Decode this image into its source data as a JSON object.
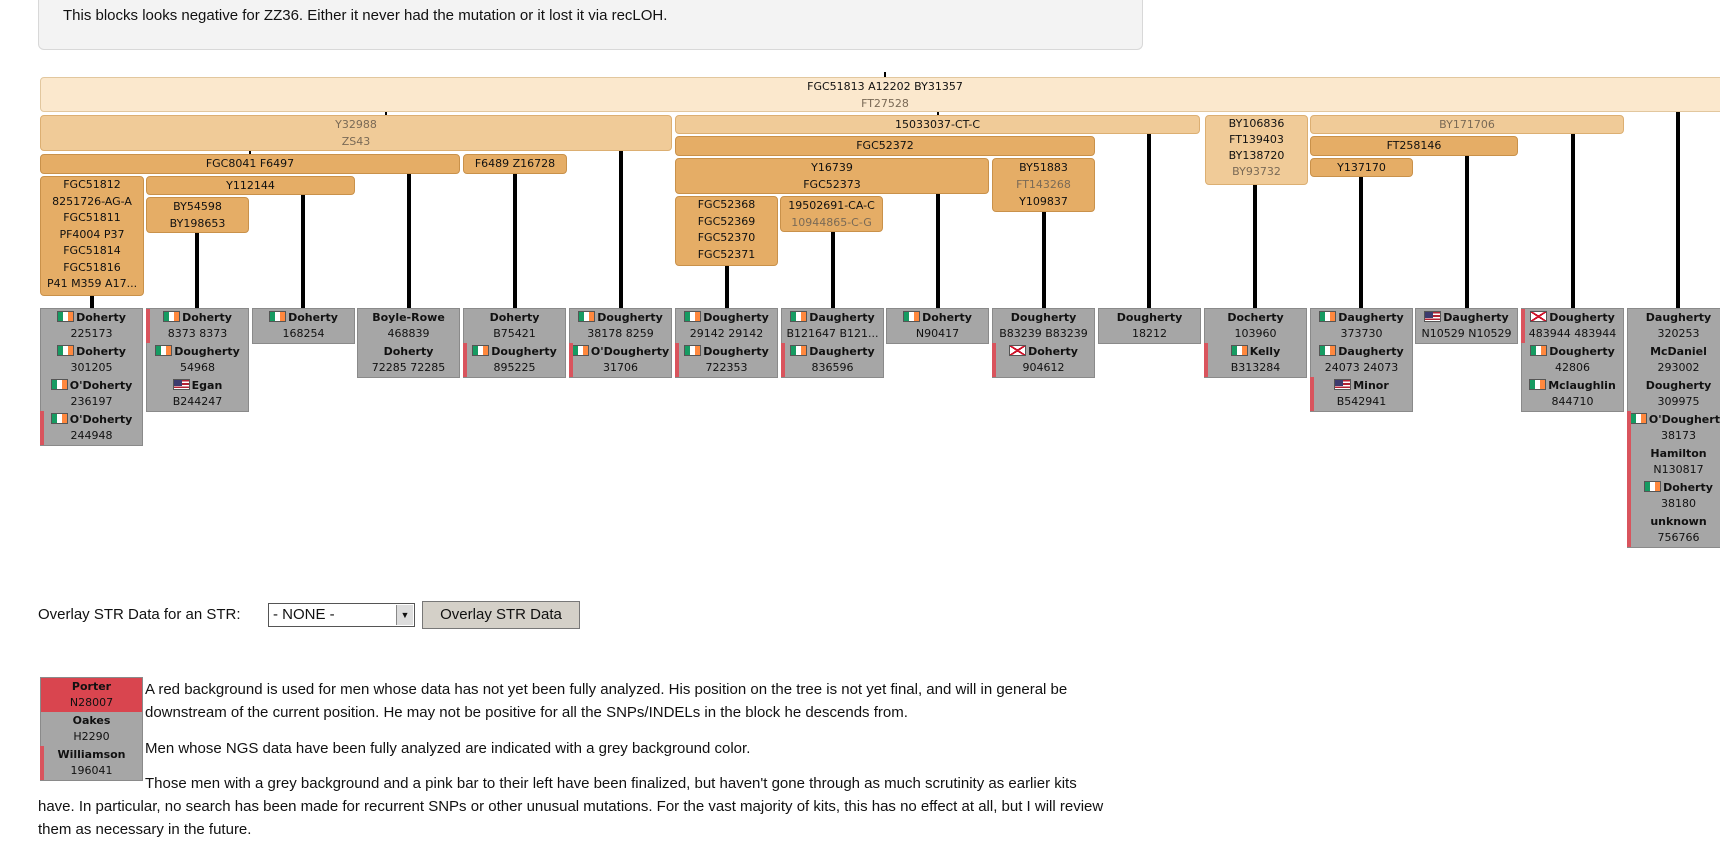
{
  "notice": "This blocks looks negative for ZZ36. Either it never had the mutation or it lost it via recLOH.",
  "blocks": {
    "root_line1": "FGC51813 A12202 BY31357",
    "root_line2": "FT27528",
    "y32988": "Y32988",
    "zs43": "ZS43",
    "ct15033037": "15033037-CT-C",
    "by106836": "BY106836",
    "ft139403": "FT139403",
    "by138720": "BY138720",
    "by93732": "BY93732",
    "by171706": "BY171706",
    "fgc8041": "FGC8041 F6497",
    "f6489": "F6489 Z16728",
    "fgc52372": "FGC52372",
    "ft258146": "FT258146",
    "fgc51812": [
      "FGC51812",
      "8251726-AG-A",
      "FGC51811",
      "PF4004 P37",
      "FGC51814",
      "FGC51816",
      "P41 M359 A17..."
    ],
    "y112144": "Y112144",
    "by54598": [
      "BY54598",
      "BY198653"
    ],
    "y16739": [
      "Y16739",
      "FGC52373"
    ],
    "by51883": "BY51883",
    "ft143268": "FT143268",
    "y109837": "Y109837",
    "y137170": "Y137170",
    "fgc52368": [
      "FGC52368",
      "FGC52369",
      "FGC52370",
      "FGC52371"
    ],
    "ca19502691": "19502691-CA-C",
    "cg10944865": "10944865-C-G"
  },
  "kits": [
    [
      {
        "flag": "ie",
        "name": "Doherty",
        "id": "225173",
        "mark": ""
      },
      {
        "flag": "ie",
        "name": "Doherty",
        "id": "301205",
        "mark": ""
      },
      {
        "flag": "ie",
        "name": "O'Doherty",
        "id": "236197",
        "mark": ""
      },
      {
        "flag": "ie",
        "name": "O'Doherty",
        "id": "244948",
        "mark": "pink"
      }
    ],
    [
      {
        "flag": "ie",
        "name": "Doherty",
        "id": "8373 8373",
        "mark": "pink"
      },
      {
        "flag": "ie",
        "name": "Dougherty",
        "id": "54968",
        "mark": ""
      },
      {
        "flag": "us",
        "name": "Egan",
        "id": "B244247",
        "mark": ""
      }
    ],
    [
      {
        "flag": "ie",
        "name": "Doherty",
        "id": "168254",
        "mark": ""
      }
    ],
    [
      {
        "flag": "",
        "name": "Boyle-Rowe",
        "id": "468839",
        "mark": ""
      },
      {
        "flag": "",
        "name": "Doherty",
        "id": "72285 72285",
        "mark": ""
      }
    ],
    [
      {
        "flag": "",
        "name": "Doherty",
        "id": "B75421",
        "mark": ""
      },
      {
        "flag": "ie",
        "name": "Dougherty",
        "id": "895225",
        "mark": "pink"
      }
    ],
    [
      {
        "flag": "ie",
        "name": "Dougherty",
        "id": "38178 8259",
        "mark": ""
      },
      {
        "flag": "ie",
        "name": "O'Dougherty",
        "id": "31706",
        "mark": "pink"
      }
    ],
    [
      {
        "flag": "ie",
        "name": "Dougherty",
        "id": "29142 29142",
        "mark": ""
      },
      {
        "flag": "ie",
        "name": "Dougherty",
        "id": "722353",
        "mark": "pink"
      }
    ],
    [
      {
        "flag": "ie",
        "name": "Daugherty",
        "id": "B121647 B121...",
        "mark": ""
      },
      {
        "flag": "ie",
        "name": "Daugherty",
        "id": "836596",
        "mark": "pink"
      }
    ],
    [
      {
        "flag": "ie",
        "name": "Doherty",
        "id": "N90417",
        "mark": ""
      }
    ],
    [
      {
        "flag": "",
        "name": "Dougherty",
        "id": "B83239 B83239",
        "mark": ""
      },
      {
        "flag": "ni",
        "name": "Doherty",
        "id": "904612",
        "mark": "pink"
      }
    ],
    [
      {
        "flag": "",
        "name": "Dougherty",
        "id": "18212",
        "mark": ""
      }
    ],
    [
      {
        "flag": "",
        "name": "Docherty",
        "id": "103960",
        "mark": ""
      },
      {
        "flag": "ie",
        "name": "Kelly",
        "id": "B313284",
        "mark": "pink"
      }
    ],
    [
      {
        "flag": "ie",
        "name": "Daugherty",
        "id": "373730",
        "mark": ""
      },
      {
        "flag": "ie",
        "name": "Daugherty",
        "id": "24073 24073",
        "mark": ""
      },
      {
        "flag": "us",
        "name": "Minor",
        "id": "B542941",
        "mark": "pink"
      }
    ],
    [
      {
        "flag": "us",
        "name": "Daugherty",
        "id": "N10529 N10529",
        "mark": ""
      }
    ],
    [
      {
        "flag": "ni",
        "name": "Dougherty",
        "id": "483944 483944",
        "mark": "pink"
      },
      {
        "flag": "ie",
        "name": "Dougherty",
        "id": "42806",
        "mark": ""
      },
      {
        "flag": "ie",
        "name": "Mclaughlin",
        "id": "844710",
        "mark": ""
      }
    ],
    [
      {
        "flag": "",
        "name": "Daugherty",
        "id": "320253",
        "mark": ""
      },
      {
        "flag": "",
        "name": "McDaniel",
        "id": "293002",
        "mark": ""
      },
      {
        "flag": "",
        "name": "Dougherty",
        "id": "309975",
        "mark": ""
      },
      {
        "flag": "ie",
        "name": "O'Dougherty",
        "id": "38173",
        "mark": "pink"
      },
      {
        "flag": "",
        "name": "Hamilton",
        "id": "N130817",
        "mark": "pink"
      },
      {
        "flag": "ie",
        "name": "Doherty",
        "id": "38180",
        "mark": "pink"
      },
      {
        "flag": "",
        "name": "unknown",
        "id": "756766",
        "mark": "pink"
      }
    ]
  ],
  "overlay": {
    "label": "Overlay STR Data for an STR:",
    "select_value": "- NONE -",
    "button": "Overlay STR Data"
  },
  "legend": [
    {
      "name": "Porter",
      "id": "N28007",
      "style": "red"
    },
    {
      "name": "Oakes",
      "id": "H2290",
      "style": ""
    },
    {
      "name": "Williamson",
      "id": "196041",
      "style": "pink"
    }
  ],
  "paragraphs": {
    "p1": "A red background is used for men whose data has not yet been fully analyzed. His position on the tree is not yet final, and will in general be downstream of the current position. He may not be positive for all the SNPs/INDELs in the block he descends from.",
    "p2": "Men whose NGS data have been fully analyzed are indicated with a grey background color.",
    "p3": "Those men with a grey background and a pink bar to their left have been finalized, but haven't gone through as much scrutinity as earlier kits have. In particular, no search has been made for recurrent SNPs or other unusual mutations. For the vast majority of kits, this has no effect at all, but I will review them as necessary in the future."
  },
  "colors": {
    "block_light": "#fbe8cd",
    "block_mid": "#f0cb98",
    "block_dark": "#e5ad66",
    "kit_grey": "#a6a6a6",
    "kit_red": "#d9454f",
    "pink_bar": "#d9545d"
  }
}
